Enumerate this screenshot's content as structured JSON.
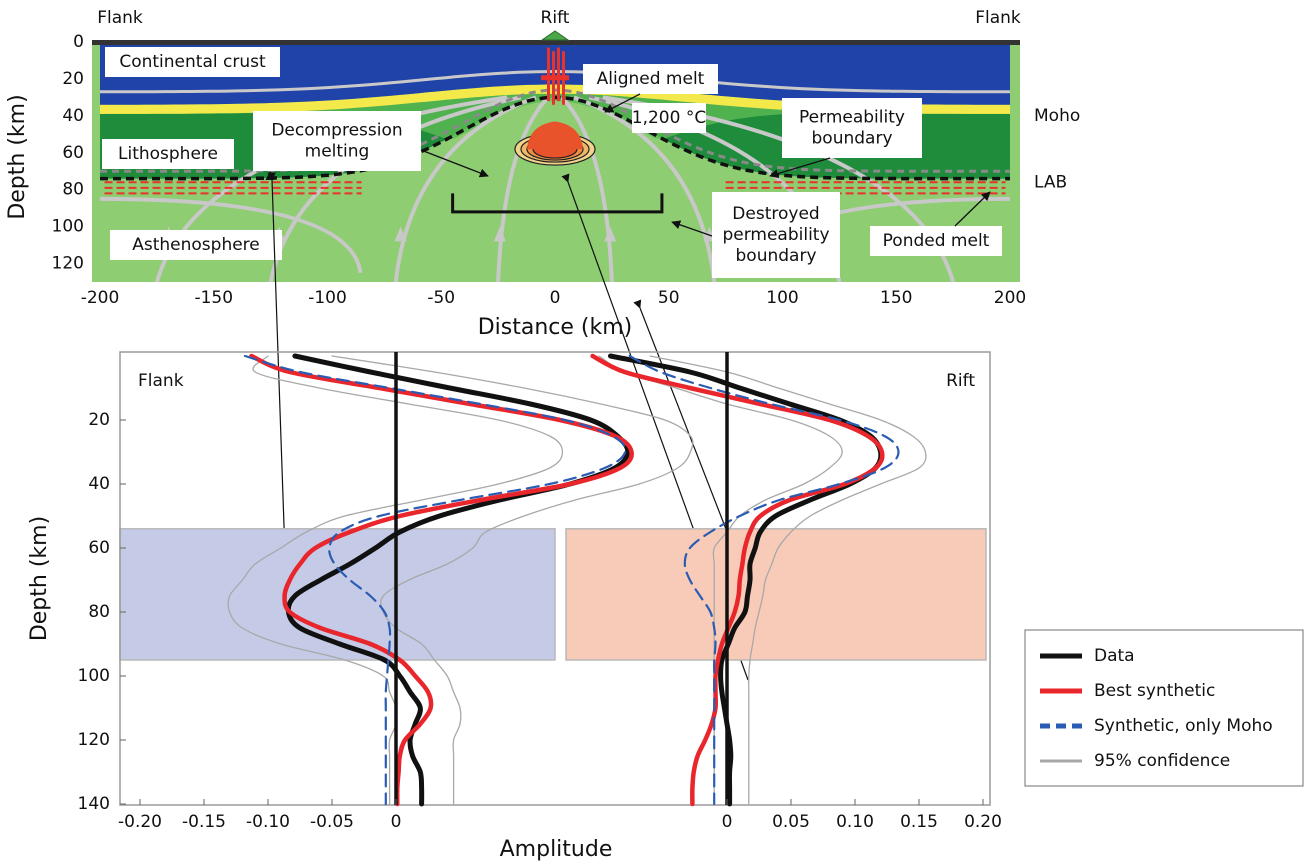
{
  "chart_data": [
    {
      "type": "section",
      "x_label": "Distance (km)",
      "y_label": "Depth (km)",
      "xlim": [
        -200,
        200
      ],
      "xticks": [
        -200,
        -150,
        -100,
        -50,
        0,
        50,
        100,
        150,
        200
      ],
      "ylim": [
        0,
        130
      ],
      "yticks": [
        0,
        20,
        40,
        60,
        80,
        100,
        120
      ],
      "y_inverted": true,
      "header_labels": [
        "Flank",
        "Rift",
        "Flank"
      ],
      "boundary_labels": [
        "Moho",
        "LAB"
      ],
      "annotations": [
        [
          "Continental crust"
        ],
        [
          "Aligned melt"
        ],
        [
          "Decompression",
          "melting"
        ],
        [
          "1,200 °C"
        ],
        [
          "Permeability",
          "boundary"
        ],
        [
          "Lithosphere"
        ],
        [
          "Asthenosphere"
        ],
        [
          "Destroyed",
          "permeability",
          "boundary"
        ],
        [
          "Ponded melt"
        ]
      ]
    },
    {
      "type": "line",
      "x_label": "Amplitude",
      "y_label": "Depth (km)",
      "y": [
        0,
        5,
        10,
        15,
        20,
        25,
        30,
        35,
        40,
        45,
        50,
        55,
        60,
        65,
        70,
        75,
        80,
        85,
        90,
        95,
        100,
        105,
        110,
        115,
        120,
        125,
        130,
        135,
        140
      ],
      "ylim": [
        0,
        140
      ],
      "yticks": [
        20,
        40,
        60,
        80,
        100,
        120,
        140
      ],
      "y_inverted": true,
      "legend": [
        {
          "name": "Data",
          "color": "#111111",
          "dash": "solid"
        },
        {
          "name": "Best synthetic",
          "color": "#e8262b",
          "dash": "solid"
        },
        {
          "name": "Synthetic, only Moho",
          "color": "#2b5cb3",
          "dash": "dashed"
        },
        {
          "name": "95% confidence",
          "color": "#a8a8a8",
          "dash": "solid"
        }
      ],
      "panels": [
        {
          "label": "Flank",
          "xlim": [
            -0.2,
            0
          ],
          "xticks": [
            {
              "value": -0.2,
              "label": "-0.20"
            },
            -0.15,
            {
              "value": -0.1,
              "label": "-0.10"
            },
            -0.05,
            0
          ],
          "highlight": {
            "ylim": [
              54,
              95
            ],
            "color": "#c5cbe7"
          },
          "series": [
            {
              "values": [
                -0.079,
                -0.02,
                0.042,
                0.105,
                0.152,
                0.173,
                0.181,
                0.171,
                0.136,
                0.081,
                0.034,
                0.003,
                -0.016,
                -0.036,
                -0.059,
                -0.079,
                -0.084,
                -0.075,
                -0.044,
                -0.009,
                0.003,
                0.011,
                0.019,
                0.015,
                0.011,
                0.013,
                0.019,
                0.02,
                0.02
              ]
            },
            {
              "values": [
                -0.113,
                -0.083,
                -0.013,
                0.058,
                0.128,
                0.171,
                0.184,
                0.175,
                0.136,
                0.066,
                0.003,
                -0.036,
                -0.063,
                -0.075,
                -0.083,
                -0.087,
                -0.083,
                -0.059,
                -0.02,
                0.003,
                0.015,
                0.025,
                0.027,
                0.019,
                0.007,
                0.003,
                0.002,
                0.001,
                0.001
              ]
            },
            {
              "values": [
                -0.118,
                -0.075,
                -0.005,
                0.066,
                0.132,
                0.169,
                0.179,
                0.163,
                0.12,
                0.05,
                -0.013,
                -0.044,
                -0.052,
                -0.048,
                -0.036,
                -0.02,
                -0.009,
                -0.005,
                -0.005,
                -0.006,
                -0.007,
                -0.008,
                -0.008,
                -0.008,
                -0.008,
                -0.008,
                -0.008,
                -0.008,
                -0.008
              ]
            },
            {
              "lower": [
                -0.1,
                -0.11,
                -0.06,
                0.01,
                0.08,
                0.12,
                0.13,
                0.12,
                0.08,
                0.02,
                -0.04,
                -0.07,
                -0.09,
                -0.11,
                -0.12,
                -0.13,
                -0.13,
                -0.12,
                -0.09,
                -0.04,
                -0.01,
                -0.005,
                0,
                0,
                -0.005,
                -0.005,
                -0.005,
                -0.005,
                -0.005
              ],
              "upper": [
                -0.05,
                0.03,
                0.1,
                0.16,
                0.21,
                0.23,
                0.23,
                0.22,
                0.19,
                0.14,
                0.1,
                0.07,
                0.06,
                0.04,
                0.01,
                -0.01,
                -0.01,
                0,
                0.02,
                0.03,
                0.04,
                0.045,
                0.05,
                0.05,
                0.045,
                0.045,
                0.045,
                0.045,
                0.045
              ]
            }
          ]
        },
        {
          "label": "Rift",
          "xlim": [
            0,
            0.2
          ],
          "xticks": [
            0,
            0.05,
            {
              "value": 0.1,
              "label": "0.10"
            },
            0.15,
            {
              "value": 0.2,
              "label": "0.20"
            }
          ],
          "highlight": {
            "ylim": [
              54,
              95
            ],
            "color": "#f8cbb8"
          },
          "series": [
            {
              "values": [
                -0.091,
                -0.029,
                0.01,
                0.049,
                0.088,
                0.112,
                0.12,
                0.116,
                0.096,
                0.065,
                0.038,
                0.026,
                0.022,
                0.018,
                0.018,
                0.016,
                0.014,
                0.006,
                0.001,
                -0.004,
                -0.005,
                -0.004,
                -0.002,
                0,
                0.002,
                0.003,
                0.002,
                0.002,
                0.002
              ]
            },
            {
              "values": [
                -0.105,
                -0.08,
                -0.029,
                0.026,
                0.08,
                0.11,
                0.121,
                0.116,
                0.092,
                0.049,
                0.026,
                0.018,
                0.014,
                0.012,
                0.01,
                0.009,
                0.006,
                0.001,
                -0.004,
                -0.007,
                -0.009,
                -0.009,
                -0.009,
                -0.012,
                -0.017,
                -0.023,
                -0.026,
                -0.027,
                -0.027
              ]
            },
            {
              "values": [
                -0.076,
                -0.052,
                -0.013,
                0.034,
                0.088,
                0.123,
                0.134,
                0.123,
                0.088,
                0.041,
                0.01,
                -0.013,
                -0.029,
                -0.033,
                -0.029,
                -0.021,
                -0.013,
                -0.01,
                -0.009,
                -0.01,
                -0.01,
                -0.01,
                -0.01,
                -0.01,
                -0.01,
                -0.01,
                -0.01,
                -0.01,
                -0.01
              ]
            },
            {
              "lower": [
                -0.1,
                -0.08,
                -0.04,
                0,
                0.05,
                0.08,
                0.09,
                0.08,
                0.06,
                0.03,
                0.01,
                0,
                -0.01,
                -0.01,
                -0.01,
                -0.01,
                -0.01,
                -0.01,
                -0.01,
                -0.01,
                -0.01,
                -0.01,
                -0.01,
                -0.01,
                -0.01,
                -0.01,
                -0.01,
                -0.01,
                -0.01
              ],
              "upper": [
                -0.06,
                0,
                0.04,
                0.08,
                0.12,
                0.145,
                0.155,
                0.15,
                0.12,
                0.09,
                0.065,
                0.05,
                0.04,
                0.035,
                0.03,
                0.028,
                0.025,
                0.022,
                0.02,
                0.018,
                0.017,
                0.017,
                0.017,
                0.017,
                0.017,
                0.017,
                0.017,
                0.017,
                0.017
              ]
            }
          ]
        }
      ]
    }
  ]
}
